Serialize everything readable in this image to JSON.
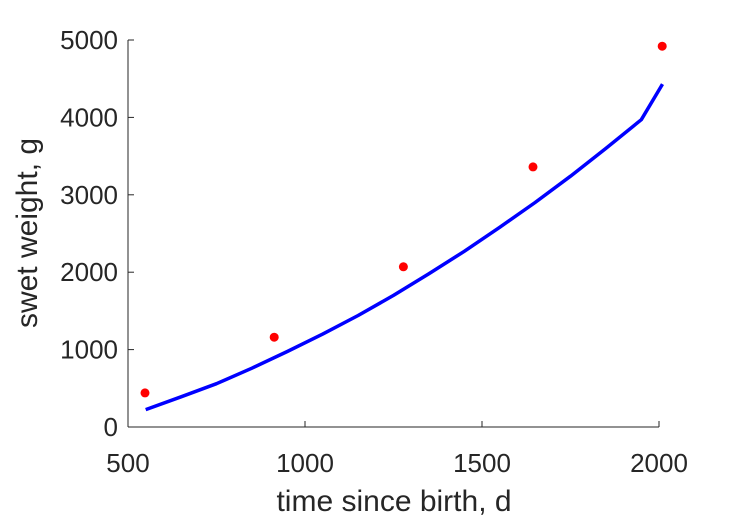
{
  "chart_data": {
    "type": "scatter",
    "title": "",
    "xlabel": "time since birth, d",
    "ylabel": "swet weight, g",
    "xlim": [
      500,
      2000
    ],
    "ylim": [
      0,
      5000
    ],
    "xticks": [
      500,
      1000,
      1500,
      2000
    ],
    "yticks": [
      0,
      1000,
      2000,
      3000,
      4000,
      5000
    ],
    "grid": false,
    "legend": "none",
    "series": [
      {
        "kind": "points",
        "color": "#ff0000",
        "x": [
          548,
          913,
          1278,
          1644,
          2009
        ],
        "y": [
          440,
          1160,
          2070,
          3360,
          4920
        ]
      },
      {
        "kind": "line",
        "color": "#0000ff",
        "x": [
          550,
          650,
          750,
          850,
          950,
          1050,
          1150,
          1250,
          1350,
          1450,
          1550,
          1650,
          1750,
          1850,
          1950,
          2010
        ],
        "y": [
          225,
          390,
          560,
          760,
          975,
          1200,
          1440,
          1700,
          1980,
          2270,
          2580,
          2900,
          3240,
          3600,
          3970,
          4430
        ]
      }
    ]
  }
}
